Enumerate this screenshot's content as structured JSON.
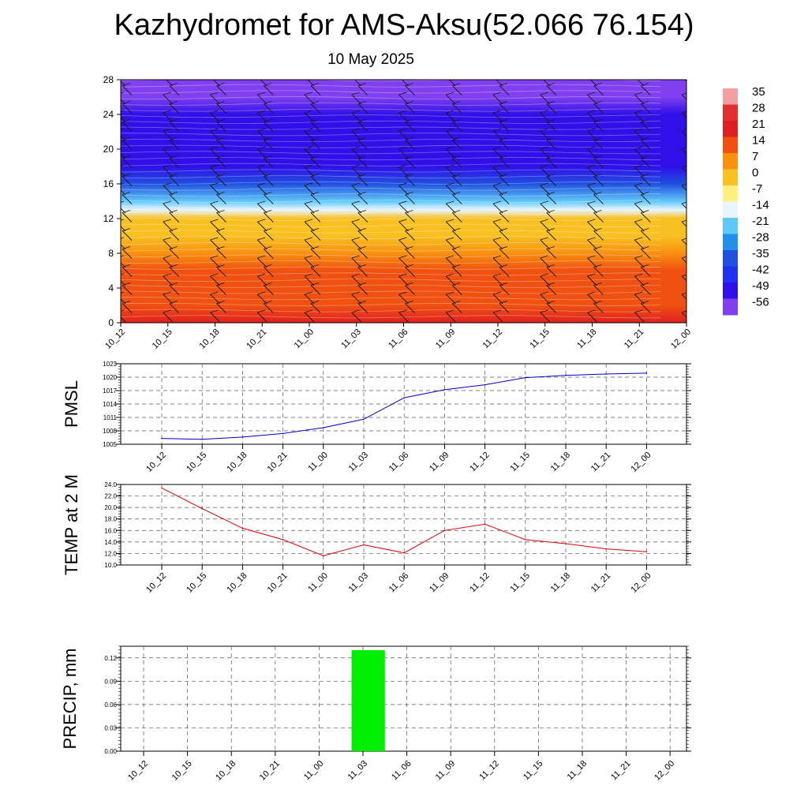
{
  "header": {
    "title": "Kazhydromet for AMS-Aksu(52.066 76.154)",
    "subtitle": "10 May 2025"
  },
  "chart_data": [
    {
      "type": "heatmap",
      "title": "",
      "xlabel": "",
      "ylabel": "",
      "x_tick_labels": [
        "10_12",
        "10_15",
        "10_18",
        "10_21",
        "11_00",
        "11_03",
        "11_06",
        "11_09",
        "11_12",
        "11_15",
        "11_18",
        "11_21",
        "12_00"
      ],
      "y_ticks": [
        0,
        4,
        8,
        12,
        16,
        20,
        24,
        28
      ],
      "ylim": [
        0,
        28
      ],
      "colorbar": {
        "labels": [
          "35",
          "28",
          "21",
          "14",
          "7",
          "0",
          "-7",
          "-14",
          "-21",
          "-28",
          "-35",
          "-42",
          "-49",
          "-56"
        ],
        "colors_top_to_bottom": [
          "#f0a0a0",
          "#e03030",
          "#e02020",
          "#f05010",
          "#f89010",
          "#f8c020",
          "#fff080",
          "#e8f4ff",
          "#60c8f8",
          "#2090e8",
          "#2050e0",
          "#2030f0",
          "#3010e8",
          "#8040f0"
        ]
      },
      "temperature_profile": [
        {
          "level": 0,
          "value": 20
        },
        {
          "level": 2,
          "value": 17
        },
        {
          "level": 4,
          "value": 14
        },
        {
          "level": 6,
          "value": 11
        },
        {
          "level": 8,
          "value": 7
        },
        {
          "level": 10,
          "value": 3
        },
        {
          "level": 12,
          "value": -3
        },
        {
          "level": 13,
          "value": -14
        },
        {
          "level": 14,
          "value": -24
        },
        {
          "level": 16,
          "value": -36
        },
        {
          "level": 18,
          "value": -46
        },
        {
          "level": 20,
          "value": -50
        },
        {
          "level": 22,
          "value": -48
        },
        {
          "level": 24,
          "value": -52
        },
        {
          "level": 26,
          "value": -58
        },
        {
          "level": 28,
          "value": -60
        }
      ],
      "grid": false
    },
    {
      "type": "line",
      "ylabel": "PMSL",
      "categories": [
        "10_12",
        "10_15",
        "10_18",
        "10_21",
        "11_00",
        "11_03",
        "11_06",
        "11_09",
        "11_12",
        "11_15",
        "11_18",
        "11_21",
        "12_00"
      ],
      "series": [
        {
          "values": [
            1006.3,
            1006.1,
            1006.6,
            1007.4,
            1008.7,
            1010.6,
            1015.4,
            1017.2,
            1018.3,
            1019.9,
            1020.4,
            1020.7,
            1020.9
          ],
          "color": "#0000cc"
        }
      ],
      "y_tick_labels": [
        "1023",
        "1020",
        "1017",
        "1014",
        "1011",
        "1008",
        "1005"
      ],
      "ylim": [
        1005,
        1023
      ],
      "grid": true
    },
    {
      "type": "line",
      "ylabel": "TEMP at 2 M",
      "categories": [
        "10_12",
        "10_15",
        "10_18",
        "10_21",
        "11_00",
        "11_03",
        "11_06",
        "11_09",
        "11_12",
        "11_15",
        "11_18",
        "11_21",
        "12_00"
      ],
      "series": [
        {
          "values": [
            23.4,
            19.8,
            16.4,
            14.4,
            11.6,
            13.5,
            12.1,
            16.0,
            17.1,
            14.4,
            13.7,
            12.8,
            12.3
          ],
          "color": "#dd0000"
        }
      ],
      "y_tick_labels": [
        "24.0",
        "22.0",
        "20.0",
        "18.0",
        "16.0",
        "14.0",
        "12.0",
        "10.0"
      ],
      "ylim": [
        10,
        24
      ],
      "grid": true
    },
    {
      "type": "bar",
      "ylabel": "PRECIP, mm",
      "categories": [
        "10_12",
        "10_15",
        "10_18",
        "10_21",
        "11_00",
        "11_03",
        "11_06",
        "11_09",
        "11_12",
        "11_15",
        "11_18",
        "11_21",
        "12_00"
      ],
      "values": [
        0,
        0,
        0,
        0,
        0,
        0.13,
        0,
        0,
        0,
        0,
        0,
        0,
        0
      ],
      "bar_color": "#00ee00",
      "y_tick_labels": [
        "0.12",
        "0.09",
        "0.06",
        "0.03",
        "0.00"
      ],
      "ylim": [
        0,
        0.135
      ],
      "grid": true
    }
  ]
}
